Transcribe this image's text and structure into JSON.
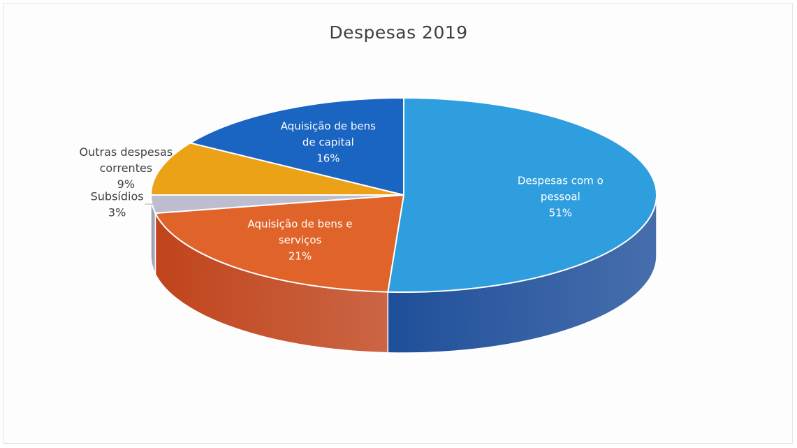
{
  "chart_data": {
    "type": "pie",
    "title": "Despesas 2019",
    "unit": "%",
    "slices": [
      {
        "label": "Despesas com o pessoal",
        "label_lines": [
          "Despesas com o",
          "pessoal"
        ],
        "value": 51,
        "value_label": "51%",
        "color": "#2e9ede",
        "side_color": "#1f4f9a"
      },
      {
        "label": "Aquisição de bens e serviços",
        "label_lines": [
          "Aquisição de bens e",
          "serviços"
        ],
        "value": 21,
        "value_label": "21%",
        "color": "#e0632a",
        "side_color": "#c0441c"
      },
      {
        "label": "Subsídios",
        "label_lines": [
          "Subsídios"
        ],
        "value": 3,
        "value_label": "3%",
        "color": "#bdbdd0",
        "side_color": "#9a9ab0"
      },
      {
        "label": "Outras despesas correntes",
        "label_lines": [
          "Outras despesas",
          "correntes"
        ],
        "value": 9,
        "value_label": "9%",
        "color": "#eca216",
        "side_color": "#c8860e"
      },
      {
        "label": "Aquisição de bens de capital",
        "label_lines": [
          "Aquisição de bens",
          "de capital"
        ],
        "value": 16,
        "value_label": "16%",
        "color": "#1a64c2",
        "side_color": "#164fa0"
      }
    ]
  }
}
